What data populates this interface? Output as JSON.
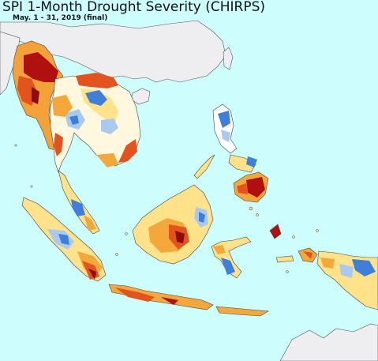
{
  "map": {
    "title": "SPI 1-Month Drought Severity (CHIRPS)",
    "subtitle": "May. 1 - 31, 2019 (final)",
    "colors": {
      "ocean": "#cdfdfd",
      "outside_region_land": "#eeeef0",
      "normal": "#ffffff",
      "abnormally_dry": "#ffe28a",
      "moderate_drought": "#f4a83c",
      "severe_drought": "#e2531d",
      "extreme_drought": "#b01010",
      "exceptional_drought": "#6a0a0a",
      "wet": "#a9c9ef",
      "very_wet": "#3d7fd9",
      "boundary": "#444444"
    }
  }
}
